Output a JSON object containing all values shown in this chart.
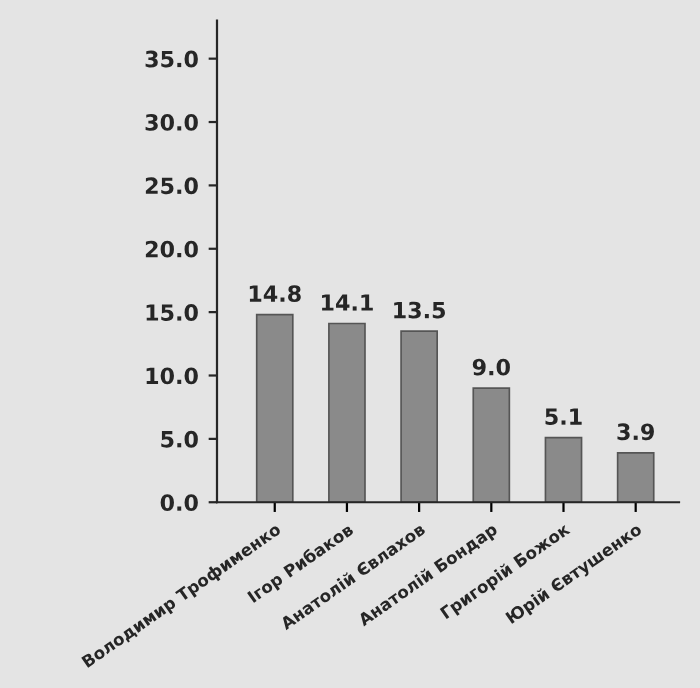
{
  "chart_data": {
    "type": "bar",
    "categories": [
      "Володимир Трофименко",
      "Ігор Рибаков",
      "Анатолій Євлахов",
      "Анатолій Бондар",
      "Григорій Божок",
      "Юрій Євтушенко"
    ],
    "values": [
      14.8,
      14.1,
      13.5,
      9.0,
      5.1,
      3.9
    ],
    "value_labels": [
      "14.8",
      "14.1",
      "13.5",
      "9.0",
      "5.1",
      "3.9"
    ],
    "color": "#8a8a8a",
    "ylim": [
      0,
      38
    ],
    "yticks": [
      {
        "value": 0,
        "label": "0.0"
      },
      {
        "value": 5,
        "label": "5.0"
      },
      {
        "value": 10,
        "label": "10.0"
      },
      {
        "value": 15,
        "label": "15.0"
      },
      {
        "value": 20,
        "label": "20.0"
      },
      {
        "value": 25,
        "label": "25.0"
      },
      {
        "value": 30,
        "label": "30.0"
      },
      {
        "value": 35,
        "label": "35.0"
      }
    ],
    "grid": false,
    "legend": false
  }
}
